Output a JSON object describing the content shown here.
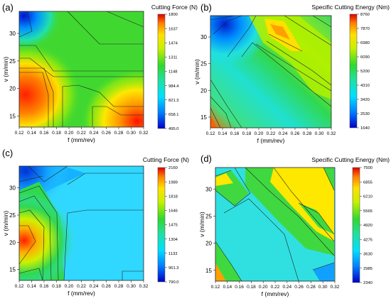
{
  "figure": {
    "panels": [
      "(a)",
      "(b)",
      "(c)",
      "(d)"
    ]
  },
  "chart_data": [
    {
      "type": "heatmap",
      "panel": "(a)",
      "title": "Cutting Force (N)",
      "xlabel": "f (mm/rev)",
      "ylabel": "v (m/min)",
      "x_ticks": [
        "0.12",
        "0.14",
        "0.16",
        "0.18",
        "0.20",
        "0.22",
        "0.24",
        "0.26",
        "0.28",
        "0.30",
        "0.32"
      ],
      "y_ticks": [
        "15",
        "20",
        "25",
        "30"
      ],
      "xlim": [
        0.12,
        0.32
      ],
      "ylim": [
        13,
        34
      ],
      "colorbar_ticks": [
        "1800",
        "1637",
        "1474",
        "1311",
        "1148",
        "984.4",
        "821.3",
        "658.1",
        "495.0"
      ],
      "colorbar_range": [
        495.0,
        1800
      ],
      "x": [
        0.12,
        0.32
      ],
      "y": [
        13,
        34
      ],
      "z": [
        [
          1850,
          1180,
          1560
        ],
        [
          1400,
          1250,
          1310
        ],
        [
          1700,
          1300,
          1300
        ],
        [
          1550,
          1290,
          1300
        ],
        [
          1000,
          1300,
          1300
        ]
      ]
    },
    {
      "type": "heatmap",
      "panel": "(b)",
      "title": "Specific Cutting Energy (Nm)",
      "xlabel": "f (mm/rev)",
      "ylabel": "v (m/min)",
      "x_ticks": [
        "0.12",
        "0.14",
        "0.16",
        "0.18",
        "0.20",
        "0.22",
        "0.24",
        "0.26",
        "0.28",
        "0.30",
        "0.32"
      ],
      "y_ticks": [
        "15",
        "20",
        "25",
        "30"
      ],
      "xlim": [
        0.12,
        0.32
      ],
      "ylim": [
        13,
        34
      ],
      "colorbar_ticks": [
        "8760",
        "7870",
        "6980",
        "6090",
        "5200",
        "4310",
        "3420",
        "2530",
        "1640"
      ],
      "colorbar_range": [
        1640,
        8760
      ]
    },
    {
      "type": "heatmap",
      "panel": "(c)",
      "title": "Cutting Force (N)",
      "xlabel": "f (mm/rev)",
      "ylabel": "v (m/min)",
      "x_ticks": [
        "0.12",
        "0.14",
        "0.16",
        "0.18",
        "0.20",
        "0.22",
        "0.24",
        "0.26",
        "0.28",
        "0.30",
        "0.32"
      ],
      "y_ticks": [
        "15",
        "20",
        "25",
        "30"
      ],
      "xlim": [
        0.12,
        0.32
      ],
      "ylim": [
        13,
        34
      ],
      "colorbar_ticks": [
        "2160",
        "1989",
        "1818",
        "1646",
        "1475",
        "1304",
        "1133",
        "961.3",
        "790.0"
      ],
      "colorbar_range": [
        790.0,
        2160
      ]
    },
    {
      "type": "heatmap",
      "panel": "(d)",
      "title": "Specific Cutting Energy (Nm)",
      "xlabel": "f (mm/rev)",
      "ylabel": "v (m/min)",
      "x_ticks": [
        "0.12",
        "0.14",
        "0.16",
        "0.18",
        "0.20",
        "0.22",
        "0.24",
        "0.26",
        "0.28",
        "0.30",
        "0.32"
      ],
      "y_ticks": [
        "15",
        "20",
        "25",
        "30"
      ],
      "xlim": [
        0.12,
        0.32
      ],
      "ylim": [
        13,
        34
      ],
      "colorbar_ticks": [
        "7500",
        "6855",
        "6210",
        "5565",
        "4920",
        "4275",
        "3630",
        "2985",
        "2340"
      ],
      "colorbar_range": [
        2340,
        7500
      ]
    }
  ]
}
